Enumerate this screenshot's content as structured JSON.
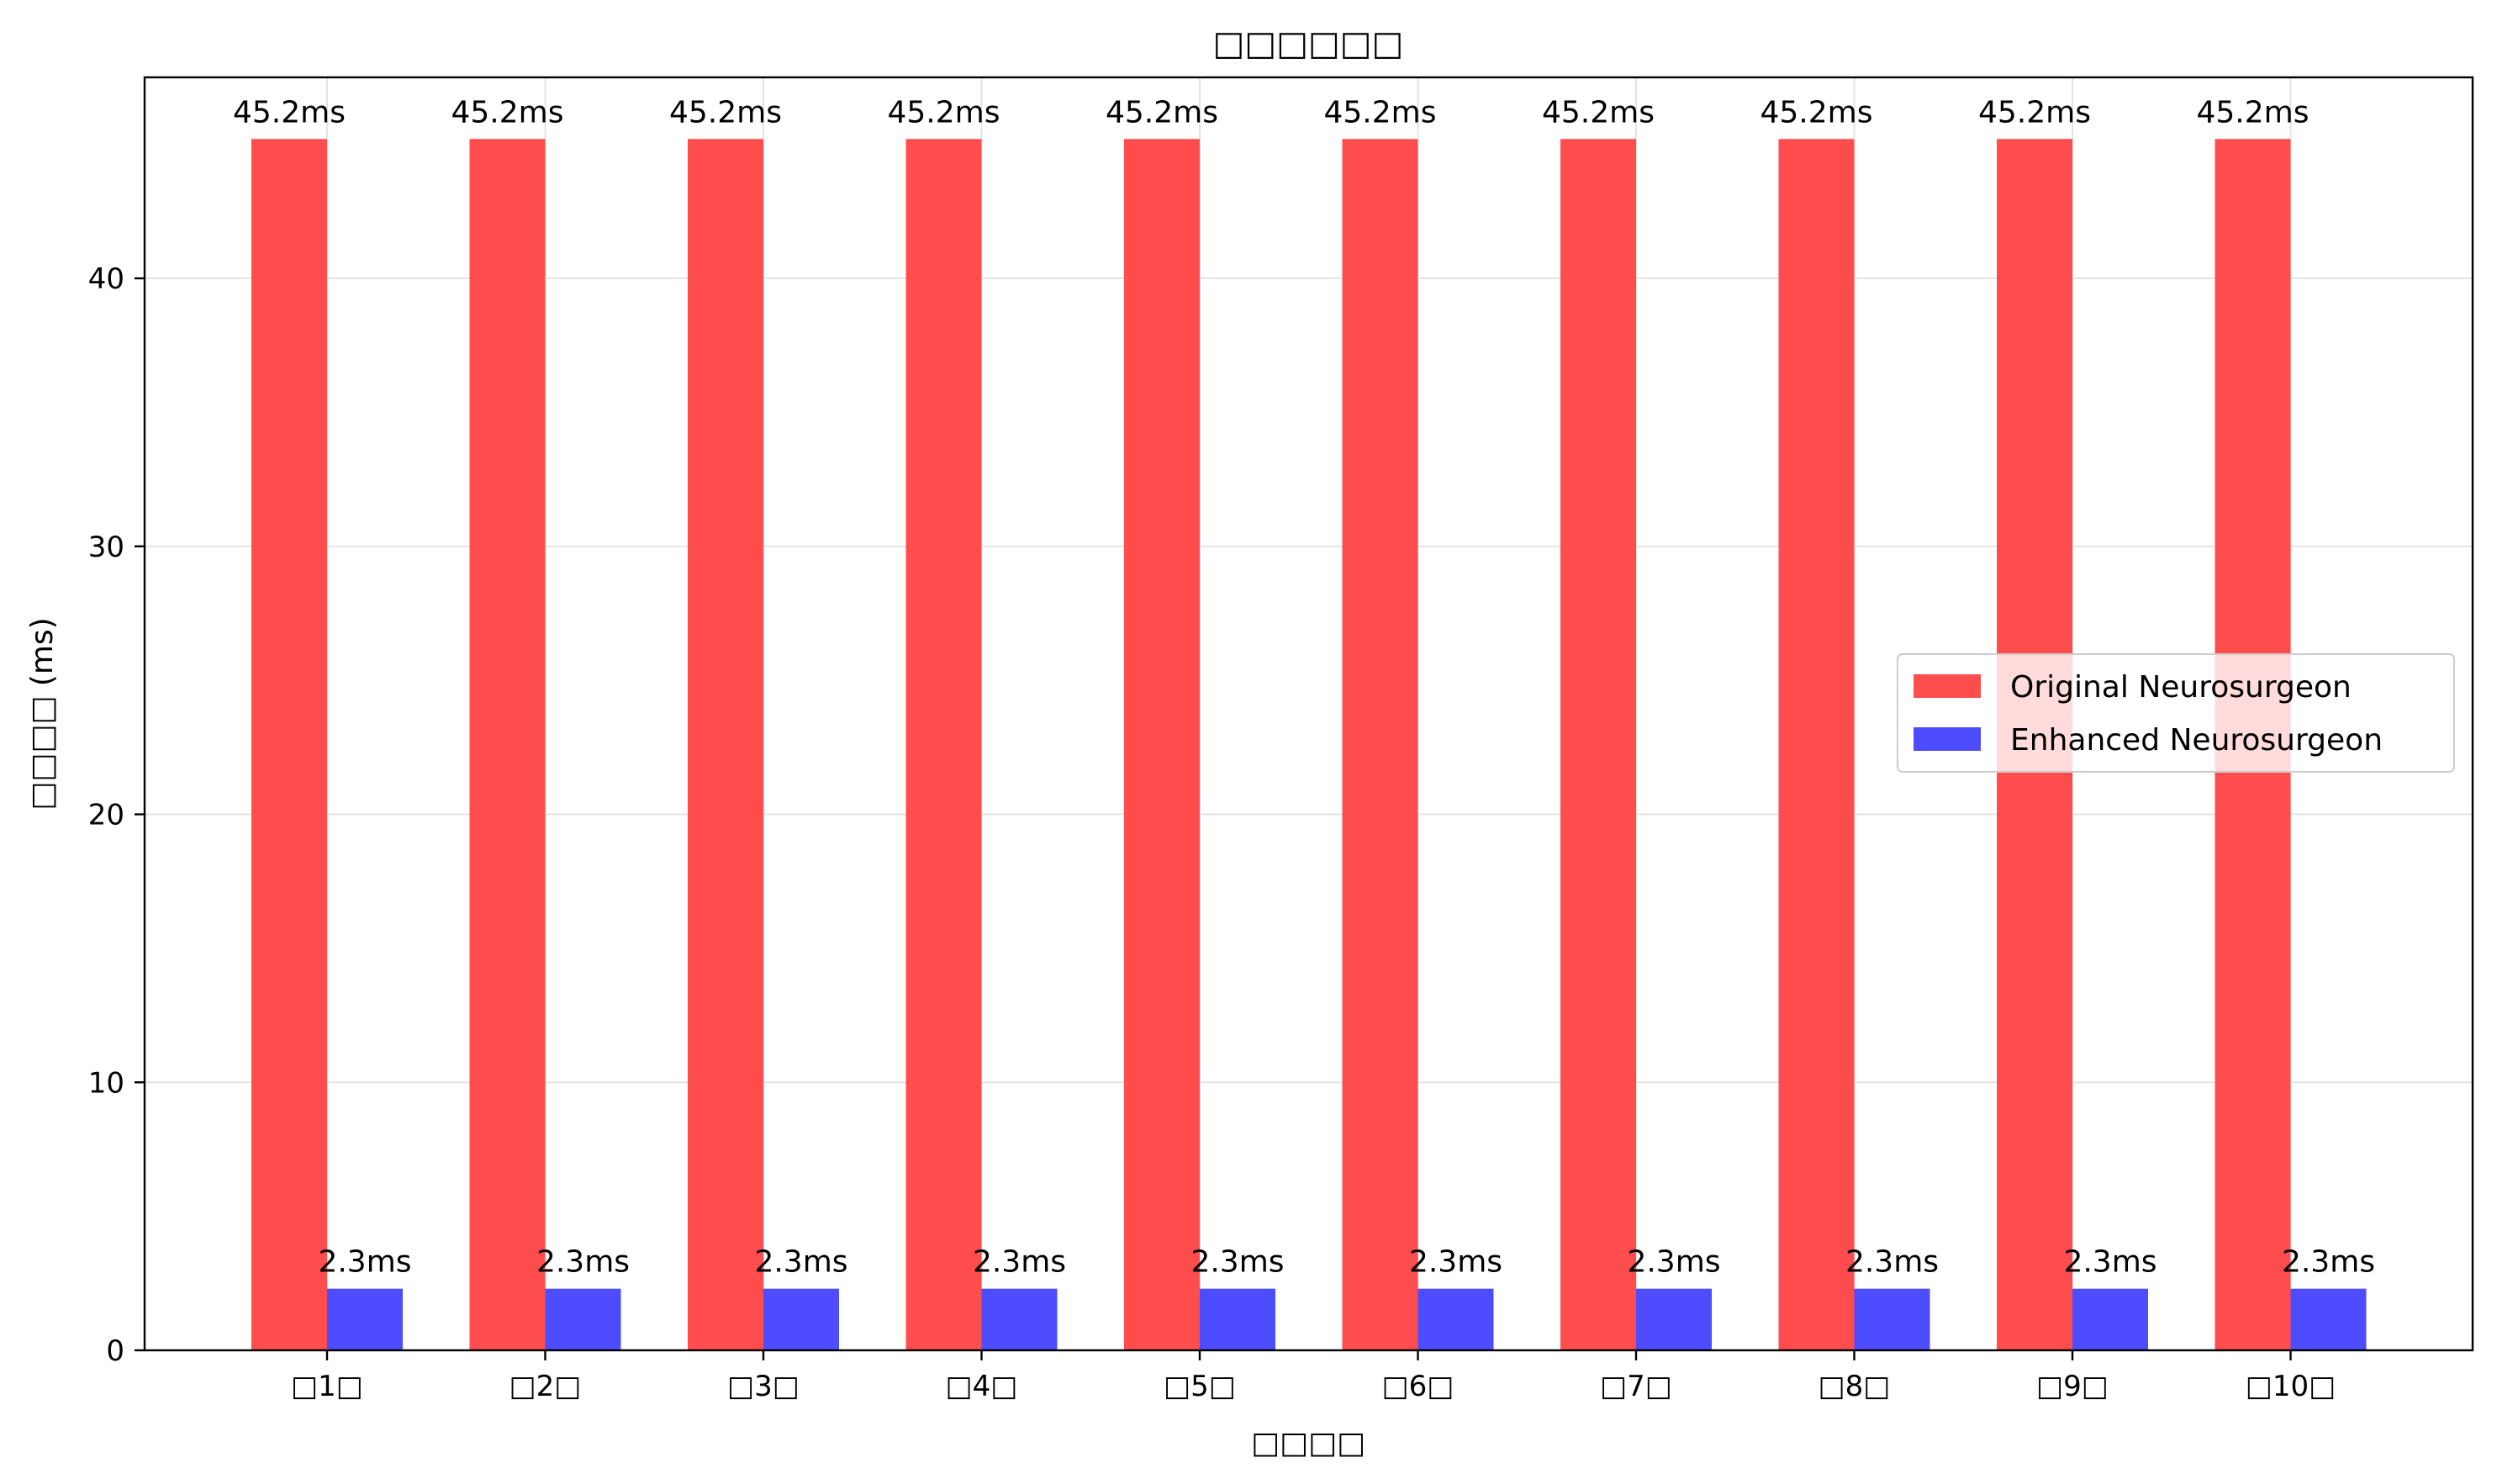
{
  "chart_data": {
    "type": "bar",
    "title": "□□□□□□",
    "xlabel": "□□□□",
    "ylabel": "□□□□ (ms)",
    "categories": [
      "□1□",
      "□2□",
      "□3□",
      "□4□",
      "□5□",
      "□6□",
      "□7□",
      "□8□",
      "□9□",
      "□10□"
    ],
    "series": [
      {
        "name": "Original Neurosurgeon",
        "color": "#ff4d4d",
        "values": [
          45.2,
          45.2,
          45.2,
          45.2,
          45.2,
          45.2,
          45.2,
          45.2,
          45.2,
          45.2
        ],
        "labels": [
          "45.2ms",
          "45.2ms",
          "45.2ms",
          "45.2ms",
          "45.2ms",
          "45.2ms",
          "45.2ms",
          "45.2ms",
          "45.2ms",
          "45.2ms"
        ]
      },
      {
        "name": "Enhanced Neurosurgeon",
        "color": "#4d4dff",
        "values": [
          2.3,
          2.3,
          2.3,
          2.3,
          2.3,
          2.3,
          2.3,
          2.3,
          2.3,
          2.3
        ],
        "labels": [
          "2.3ms",
          "2.3ms",
          "2.3ms",
          "2.3ms",
          "2.3ms",
          "2.3ms",
          "2.3ms",
          "2.3ms",
          "2.3ms",
          "2.3ms"
        ]
      }
    ],
    "yticks": [
      "0",
      "10",
      "20",
      "30",
      "40"
    ],
    "ylim": [
      0,
      47.5
    ],
    "grid": true,
    "legend": "center-right"
  }
}
